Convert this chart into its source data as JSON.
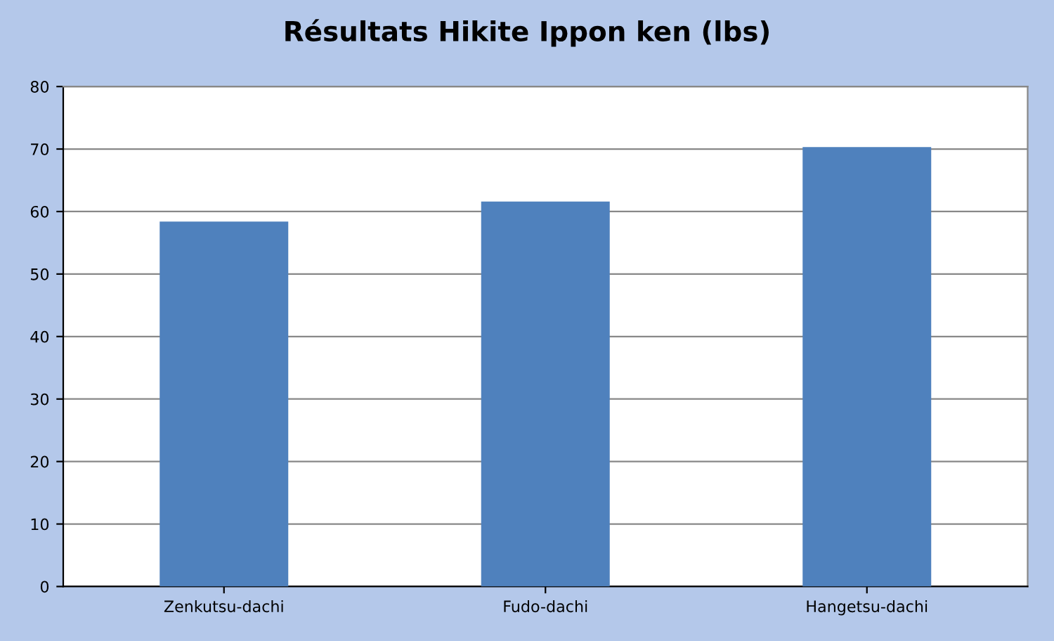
{
  "chart_data": {
    "type": "bar",
    "title": "Résultats Hikite Ippon ken (lbs)",
    "categories": [
      "Zenkutsu-dachi",
      "Fudo-dachi",
      "Hangetsu-dachi"
    ],
    "values": [
      58.4,
      61.6,
      70.3
    ],
    "color": "#4f81bd",
    "ylim": [
      0,
      80
    ],
    "yticks": [
      0,
      10,
      20,
      30,
      40,
      50,
      60,
      70,
      80
    ],
    "grid": "y"
  }
}
